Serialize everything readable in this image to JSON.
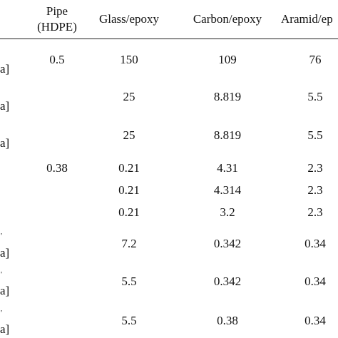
{
  "table": {
    "headers": {
      "pipe_line1": "Pipe",
      "pipe_line2": "(HDPE)",
      "glass": "Glass/epoxy",
      "carbon": "Carbon/epoxy",
      "aramid": "Aramid/ep"
    },
    "row_label_fragments": [
      "a]",
      "a]",
      "a]",
      "a]",
      "a]",
      "a]"
    ],
    "row_tick_fragments": [
      "'",
      "'",
      "'"
    ],
    "rows": [
      {
        "pipe": "0.5",
        "glass": "150",
        "carbon": "109",
        "aramid": "76"
      },
      {
        "pipe": "",
        "glass": "25",
        "carbon": "8.819",
        "aramid": "5.5"
      },
      {
        "pipe": "",
        "glass": "25",
        "carbon": "8.819",
        "aramid": "5.5"
      },
      {
        "pipe": "0.38",
        "glass": "0.21",
        "carbon": "4.31",
        "aramid": "2.3"
      },
      {
        "pipe": "",
        "glass": "0.21",
        "carbon": "4.314",
        "aramid": "2.3"
      },
      {
        "pipe": "",
        "glass": "0.21",
        "carbon": "3.2",
        "aramid": "2.3"
      },
      {
        "pipe": "",
        "glass": "7.2",
        "carbon": "0.342",
        "aramid": "0.34"
      },
      {
        "pipe": "",
        "glass": "5.5",
        "carbon": "0.342",
        "aramid": "0.34"
      },
      {
        "pipe": "",
        "glass": "5.5",
        "carbon": "0.38",
        "aramid": "0.34"
      }
    ]
  }
}
